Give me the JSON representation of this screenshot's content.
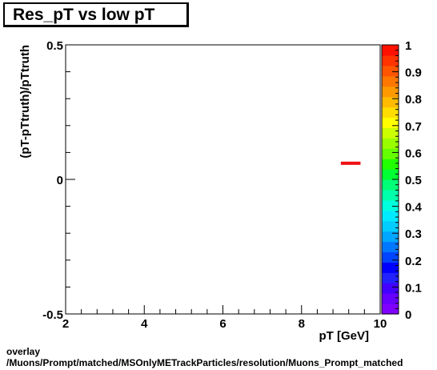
{
  "chart_data": {
    "type": "heatmap",
    "title": "Res_pT vs low pT",
    "xlabel": "pT [GeV]",
    "ylabel": "(pT-pTtruth)/pTtruth",
    "xlim": [
      2,
      10
    ],
    "ylim": [
      -0.5,
      0.5
    ],
    "x_ticks": [
      "2",
      "4",
      "6",
      "8",
      "10"
    ],
    "y_ticks": [
      "-0.5",
      "0",
      "0.5"
    ],
    "colorbar": {
      "zlim": [
        0,
        1
      ],
      "ticks": [
        "0",
        "0.1",
        "0.2",
        "0.3",
        "0.4",
        "0.5",
        "0.6",
        "0.7",
        "0.8",
        "0.9",
        "1"
      ],
      "colors": [
        "#8000ff",
        "#6600ff",
        "#4400ff",
        "#2222ff",
        "#0000ff",
        "#0044ff",
        "#0077ff",
        "#00a6ff",
        "#00ccff",
        "#00eaff",
        "#00ffdd",
        "#00ffaa",
        "#00ff77",
        "#00ff33",
        "#22ff00",
        "#66ff00",
        "#99ff00",
        "#ccff00",
        "#ffff00",
        "#ffdd00",
        "#ffbb00",
        "#ff9900",
        "#ff7700",
        "#ff5500",
        "#ff3300",
        "#ff1100"
      ]
    },
    "cells": [
      {
        "x0": 9.0,
        "x1": 9.5,
        "y": 0.06,
        "z": 1.0
      }
    ],
    "grid": false,
    "cell_color": "#ee1111"
  },
  "footer": {
    "line1": "overlay",
    "line2": "/Muons/Prompt/matched/MSOnlyMETrackParticles/resolution/Muons_Prompt_matched"
  }
}
